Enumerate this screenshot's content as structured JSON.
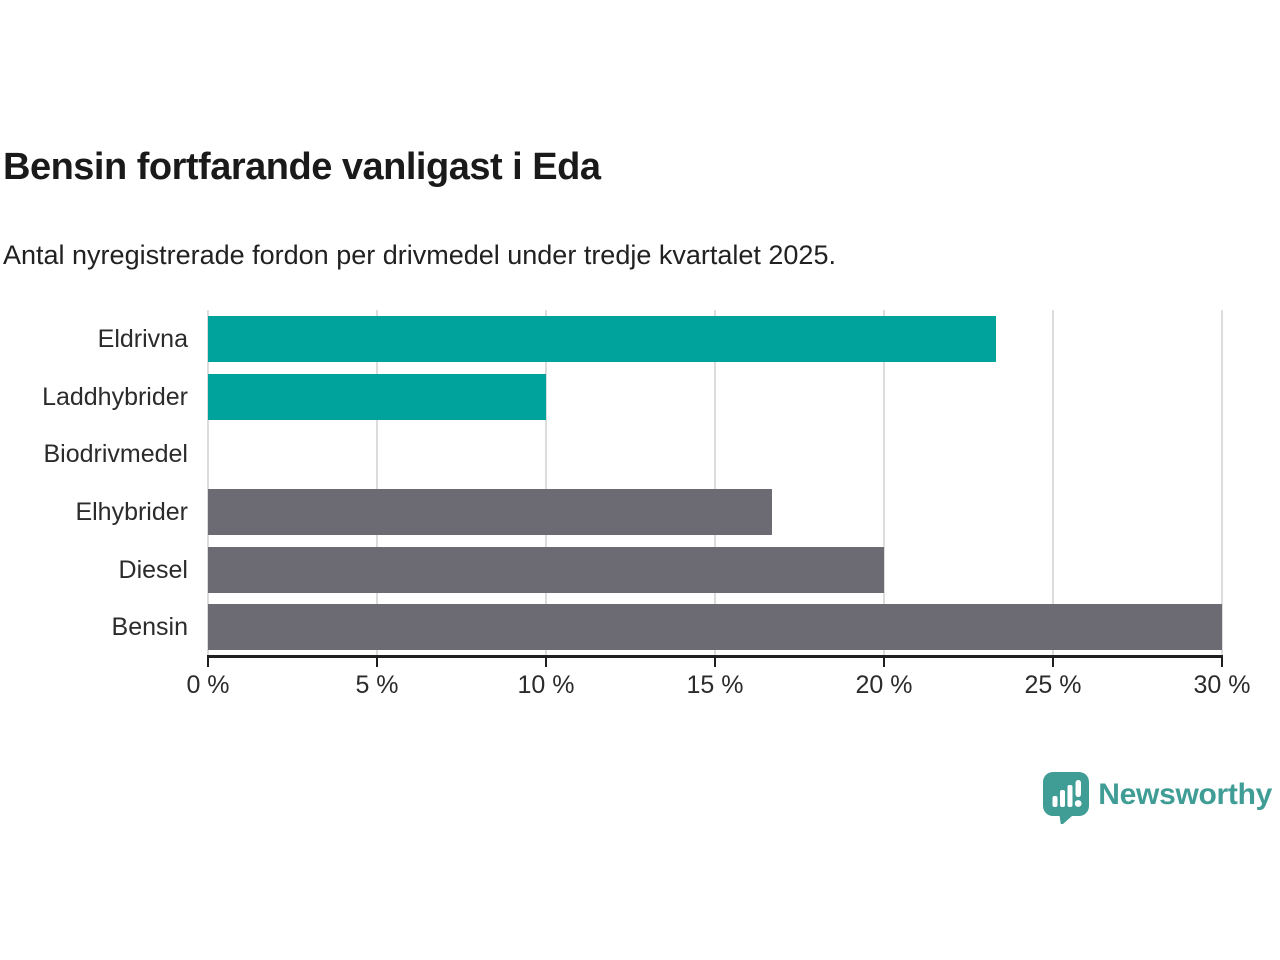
{
  "header": {
    "title": "Bensin fortfarande vanligast i Eda",
    "subtitle": "Antal nyregistrerade fordon per drivmedel under tredje kvartalet 2025."
  },
  "chart_data": {
    "type": "bar",
    "orientation": "horizontal",
    "title": "Bensin fortfarande vanligast i Eda",
    "subtitle": "Antal nyregistrerade fordon per drivmedel under tredje kvartalet 2025.",
    "categories": [
      "Eldrivna",
      "Laddhybrider",
      "Biodrivmedel",
      "Elhybrider",
      "Diesel",
      "Bensin"
    ],
    "values": [
      23.3,
      10,
      0,
      16.7,
      20,
      30
    ],
    "bar_colors": [
      "#00a39b",
      "#00a39b",
      "#00a39b",
      "#6c6b74",
      "#6c6b74",
      "#6c6b74"
    ],
    "unit": "%",
    "xlabel": "",
    "ylabel": "",
    "xlim": [
      0,
      30
    ],
    "x_tick_values": [
      0,
      5,
      10,
      15,
      20,
      25,
      30
    ],
    "x_tick_labels": [
      "0 %",
      "5 %",
      "10 %",
      "15 %",
      "20 %",
      "25 %",
      "30 %"
    ],
    "grid": "vertical-gridlines",
    "legend": "none"
  },
  "branding": {
    "logo_text": "Newsworthy",
    "logo_color": "#3f9d96"
  },
  "colors": {
    "accent_teal": "#00a39b",
    "neutral_gray": "#6c6b74",
    "axis": "#1f1f1f",
    "gridline": "#dcdcdc",
    "title_text": "#1a1a1a"
  }
}
